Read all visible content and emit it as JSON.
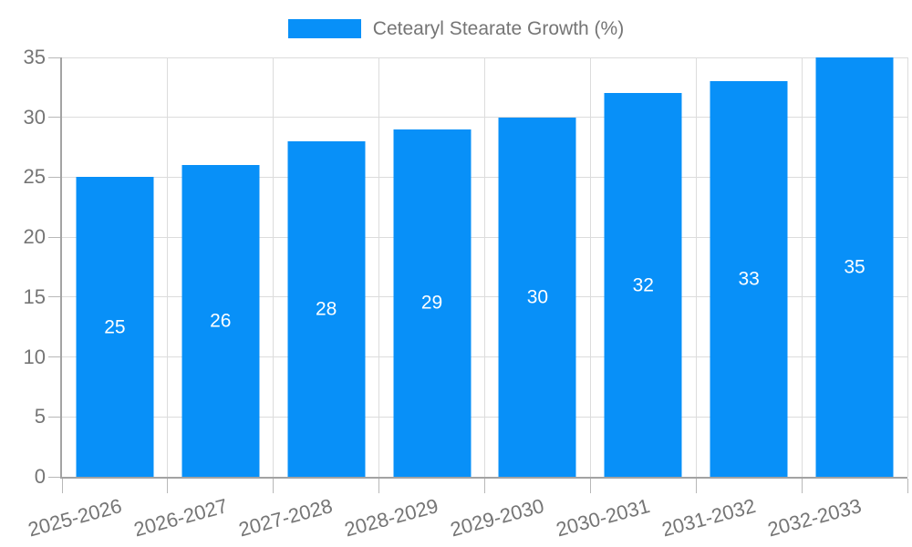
{
  "background_color": "#ffffff",
  "colors": {
    "bar": "#0890f8",
    "bar_label": "#ffffff",
    "grid": "#dcdcdc",
    "axis": "#a3a3a3",
    "tick": "#b8b8b8",
    "text": "#757575"
  },
  "legend": {
    "items": [
      {
        "label": "Cetearyl Stearate Growth (%)",
        "swatch_color": "#0890f8"
      }
    ]
  },
  "chart_data": {
    "type": "bar",
    "title": "",
    "xlabel": "",
    "ylabel": "",
    "legend": [
      "Cetearyl Stearate Growth (%)"
    ],
    "legend_position": "top-center",
    "categories": [
      "2025-2026",
      "2026-2027",
      "2027-2028",
      "2028-2029",
      "2029-2030",
      "2030-2031",
      "2031-2032",
      "2032-2033"
    ],
    "values": [
      25,
      26,
      28,
      29,
      30,
      32,
      33,
      35
    ],
    "ylim": [
      0,
      35
    ],
    "yticks": [
      0,
      5,
      10,
      15,
      20,
      25,
      30,
      35
    ],
    "grid": true,
    "grid_vertical": true,
    "bar_value_labels": "inside-middle",
    "x_tick_label_rotation_deg": -15
  }
}
